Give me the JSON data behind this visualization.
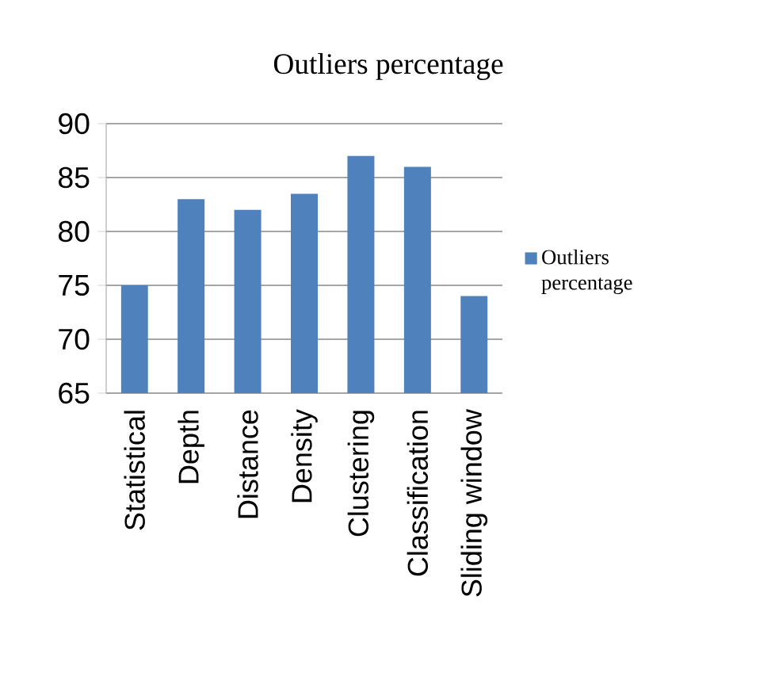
{
  "chart_data": {
    "type": "bar",
    "title": "Outliers percentage",
    "categories": [
      "Statistical",
      "Depth",
      "Distance",
      "Density",
      "Clustering",
      "Classification",
      "Sliding window"
    ],
    "series": [
      {
        "name": "Outliers percentage",
        "color": "#4f81bd",
        "values": [
          75,
          83,
          82,
          83.5,
          87,
          86,
          74
        ]
      }
    ],
    "ylim": [
      65,
      90
    ],
    "yticks": [
      65,
      70,
      75,
      80,
      85,
      90
    ],
    "grid": "y",
    "legend": "right"
  }
}
